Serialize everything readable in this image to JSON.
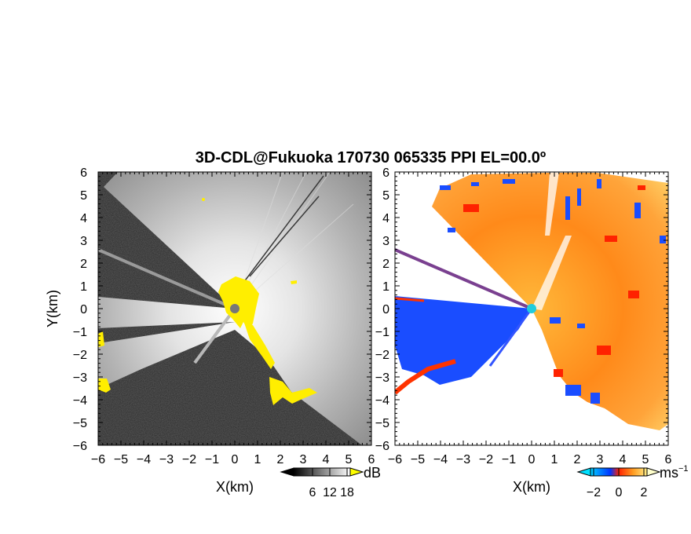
{
  "chart_data": [
    {
      "type": "heatmap",
      "title": "3D-CDL@Fukuoka 170730 065335 PPI EL=00.0º",
      "panel": "reflectivity",
      "xlabel": "X(km)",
      "ylabel": "Y(km)",
      "xlim": [
        -6,
        6
      ],
      "ylim": [
        -6,
        6
      ],
      "x_ticks": [
        "−6",
        "−5",
        "−4",
        "−3",
        "−2",
        "−1",
        "0",
        "1",
        "2",
        "3",
        "4",
        "5",
        "6"
      ],
      "y_ticks": [
        "6",
        "5",
        "4",
        "3",
        "2",
        "1",
        "0",
        "−1",
        "−2",
        "−3",
        "−4",
        "−5",
        "−6"
      ],
      "colorbar": {
        "unit": "dB",
        "ticks": [
          "6",
          "12",
          "18"
        ],
        "colors": [
          "#000000",
          "#ffffff"
        ],
        "overflow_color": "#ffff00"
      },
      "background_color": "#2a2a2a",
      "highlight_color": "#ffee00"
    },
    {
      "type": "heatmap",
      "panel": "doppler velocity",
      "xlabel": "X(km)",
      "xlim": [
        -6,
        6
      ],
      "ylim": [
        -6,
        6
      ],
      "x_ticks": [
        "−6",
        "−5",
        "−4",
        "−3",
        "−2",
        "−1",
        "0",
        "1",
        "2",
        "3",
        "4",
        "5",
        "6"
      ],
      "y_ticks": [
        "6",
        "5",
        "4",
        "3",
        "2",
        "1",
        "0",
        "−1",
        "−2",
        "−3",
        "−4",
        "−5",
        "−6"
      ],
      "colorbar": {
        "unit": "ms",
        "unit_exponent": "−1",
        "ticks": [
          "−2",
          "0",
          "2"
        ],
        "colors": [
          "#00cfff",
          "#0033ff",
          "#ff2200",
          "#ffee88"
        ]
      }
    }
  ]
}
